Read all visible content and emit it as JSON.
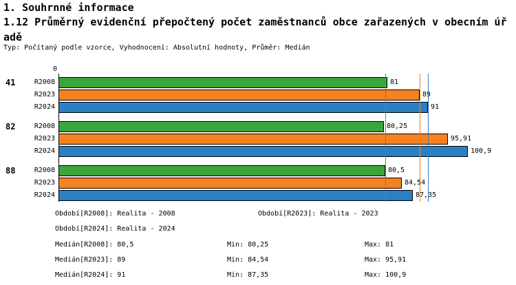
{
  "header": {
    "title": "1. Souhrnné informace",
    "subtitle": "1.12 Průměrný evidenční přepočtený počet zaměstnanců obce zařazených v obecním úřadě",
    "meta": "Typ: Počítaný podle vzorce, Vyhodnocení: Absolutní hodnoty, Průměr: Medián"
  },
  "chart_data": {
    "type": "bar",
    "orientation": "horizontal",
    "title": "1.12 Průměrný evidenční přepočtený počet zaměstnanců obce zařazených v obecním úřadě",
    "value_axis": {
      "origin_label": "0",
      "min": 0,
      "max": 108,
      "grid": false
    },
    "groups": [
      "41",
      "82",
      "88"
    ],
    "series": [
      {
        "name": "R2008",
        "color": "#3aa53a",
        "values": [
          81,
          80.25,
          80.5
        ],
        "labels": [
          "81",
          "80,25",
          "80,5"
        ]
      },
      {
        "name": "R2023",
        "color": "#f58220",
        "values": [
          89,
          95.91,
          84.54
        ],
        "labels": [
          "89",
          "95,91",
          "84,54"
        ]
      },
      {
        "name": "R2024",
        "color": "#2d7fc4",
        "values": [
          91,
          100.9,
          87.35
        ],
        "labels": [
          "91",
          "100,9",
          "87,35"
        ]
      }
    ],
    "median_lines": [
      {
        "series": "R2008",
        "value": 80.5,
        "color": "#3aa53a"
      },
      {
        "series": "R2023",
        "value": 89,
        "color": "#f58220"
      },
      {
        "series": "R2024",
        "value": 91,
        "color": "#2d7fc4"
      }
    ]
  },
  "legend": {
    "periods": [
      {
        "label": "Období[R2008]: Realita - 2008"
      },
      {
        "label": "Období[R2023]: Realita - 2023"
      },
      {
        "label": "Období[R2024]: Realita - 2024"
      }
    ],
    "stats": [
      {
        "median": "Medián[R2008]: 80,5",
        "min": "Min: 80,25",
        "max": "Max: 81"
      },
      {
        "median": "Medián[R2023]: 89",
        "min": "Min: 84,54",
        "max": "Max: 95,91"
      },
      {
        "median": "Medián[R2024]: 91",
        "min": "Min: 87,35",
        "max": "Max: 100,9"
      }
    ]
  }
}
